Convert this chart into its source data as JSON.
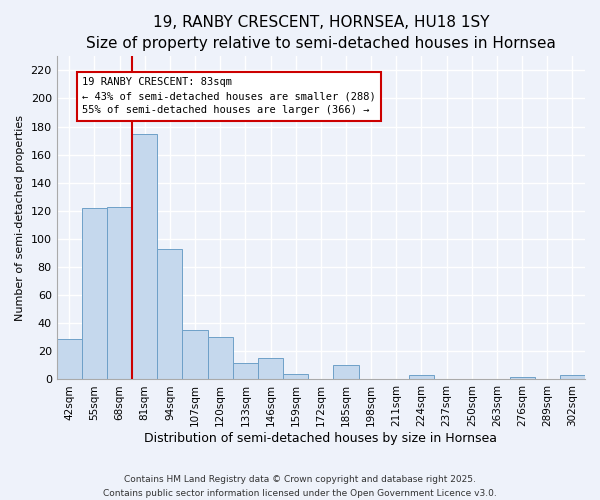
{
  "title": "19, RANBY CRESCENT, HORNSEA, HU18 1SY",
  "subtitle": "Size of property relative to semi-detached houses in Hornsea",
  "xlabel": "Distribution of semi-detached houses by size in Hornsea",
  "ylabel": "Number of semi-detached properties",
  "bar_labels": [
    "42sqm",
    "55sqm",
    "68sqm",
    "81sqm",
    "94sqm",
    "107sqm",
    "120sqm",
    "133sqm",
    "146sqm",
    "159sqm",
    "172sqm",
    "185sqm",
    "198sqm",
    "211sqm",
    "224sqm",
    "237sqm",
    "250sqm",
    "263sqm",
    "276sqm",
    "289sqm",
    "302sqm"
  ],
  "bar_values": [
    29,
    122,
    123,
    175,
    93,
    35,
    30,
    12,
    15,
    4,
    0,
    10,
    0,
    0,
    3,
    0,
    0,
    0,
    2,
    0,
    3
  ],
  "bar_color": "#c5d8ed",
  "bar_edge_color": "#6ea0c8",
  "highlight_line_color": "#cc0000",
  "annotation_title": "19 RANBY CRESCENT: 83sqm",
  "annotation_line1": "← 43% of semi-detached houses are smaller (288)",
  "annotation_line2": "55% of semi-detached houses are larger (366) →",
  "annotation_box_color": "#ffffff",
  "annotation_box_edge": "#cc0000",
  "ylim": [
    0,
    230
  ],
  "yticks": [
    0,
    20,
    40,
    60,
    80,
    100,
    120,
    140,
    160,
    180,
    200,
    220
  ],
  "footer1": "Contains HM Land Registry data © Crown copyright and database right 2025.",
  "footer2": "Contains public sector information licensed under the Open Government Licence v3.0.",
  "background_color": "#eef2fa",
  "grid_color": "#ffffff",
  "title_fontsize": 11,
  "subtitle_fontsize": 9.5
}
